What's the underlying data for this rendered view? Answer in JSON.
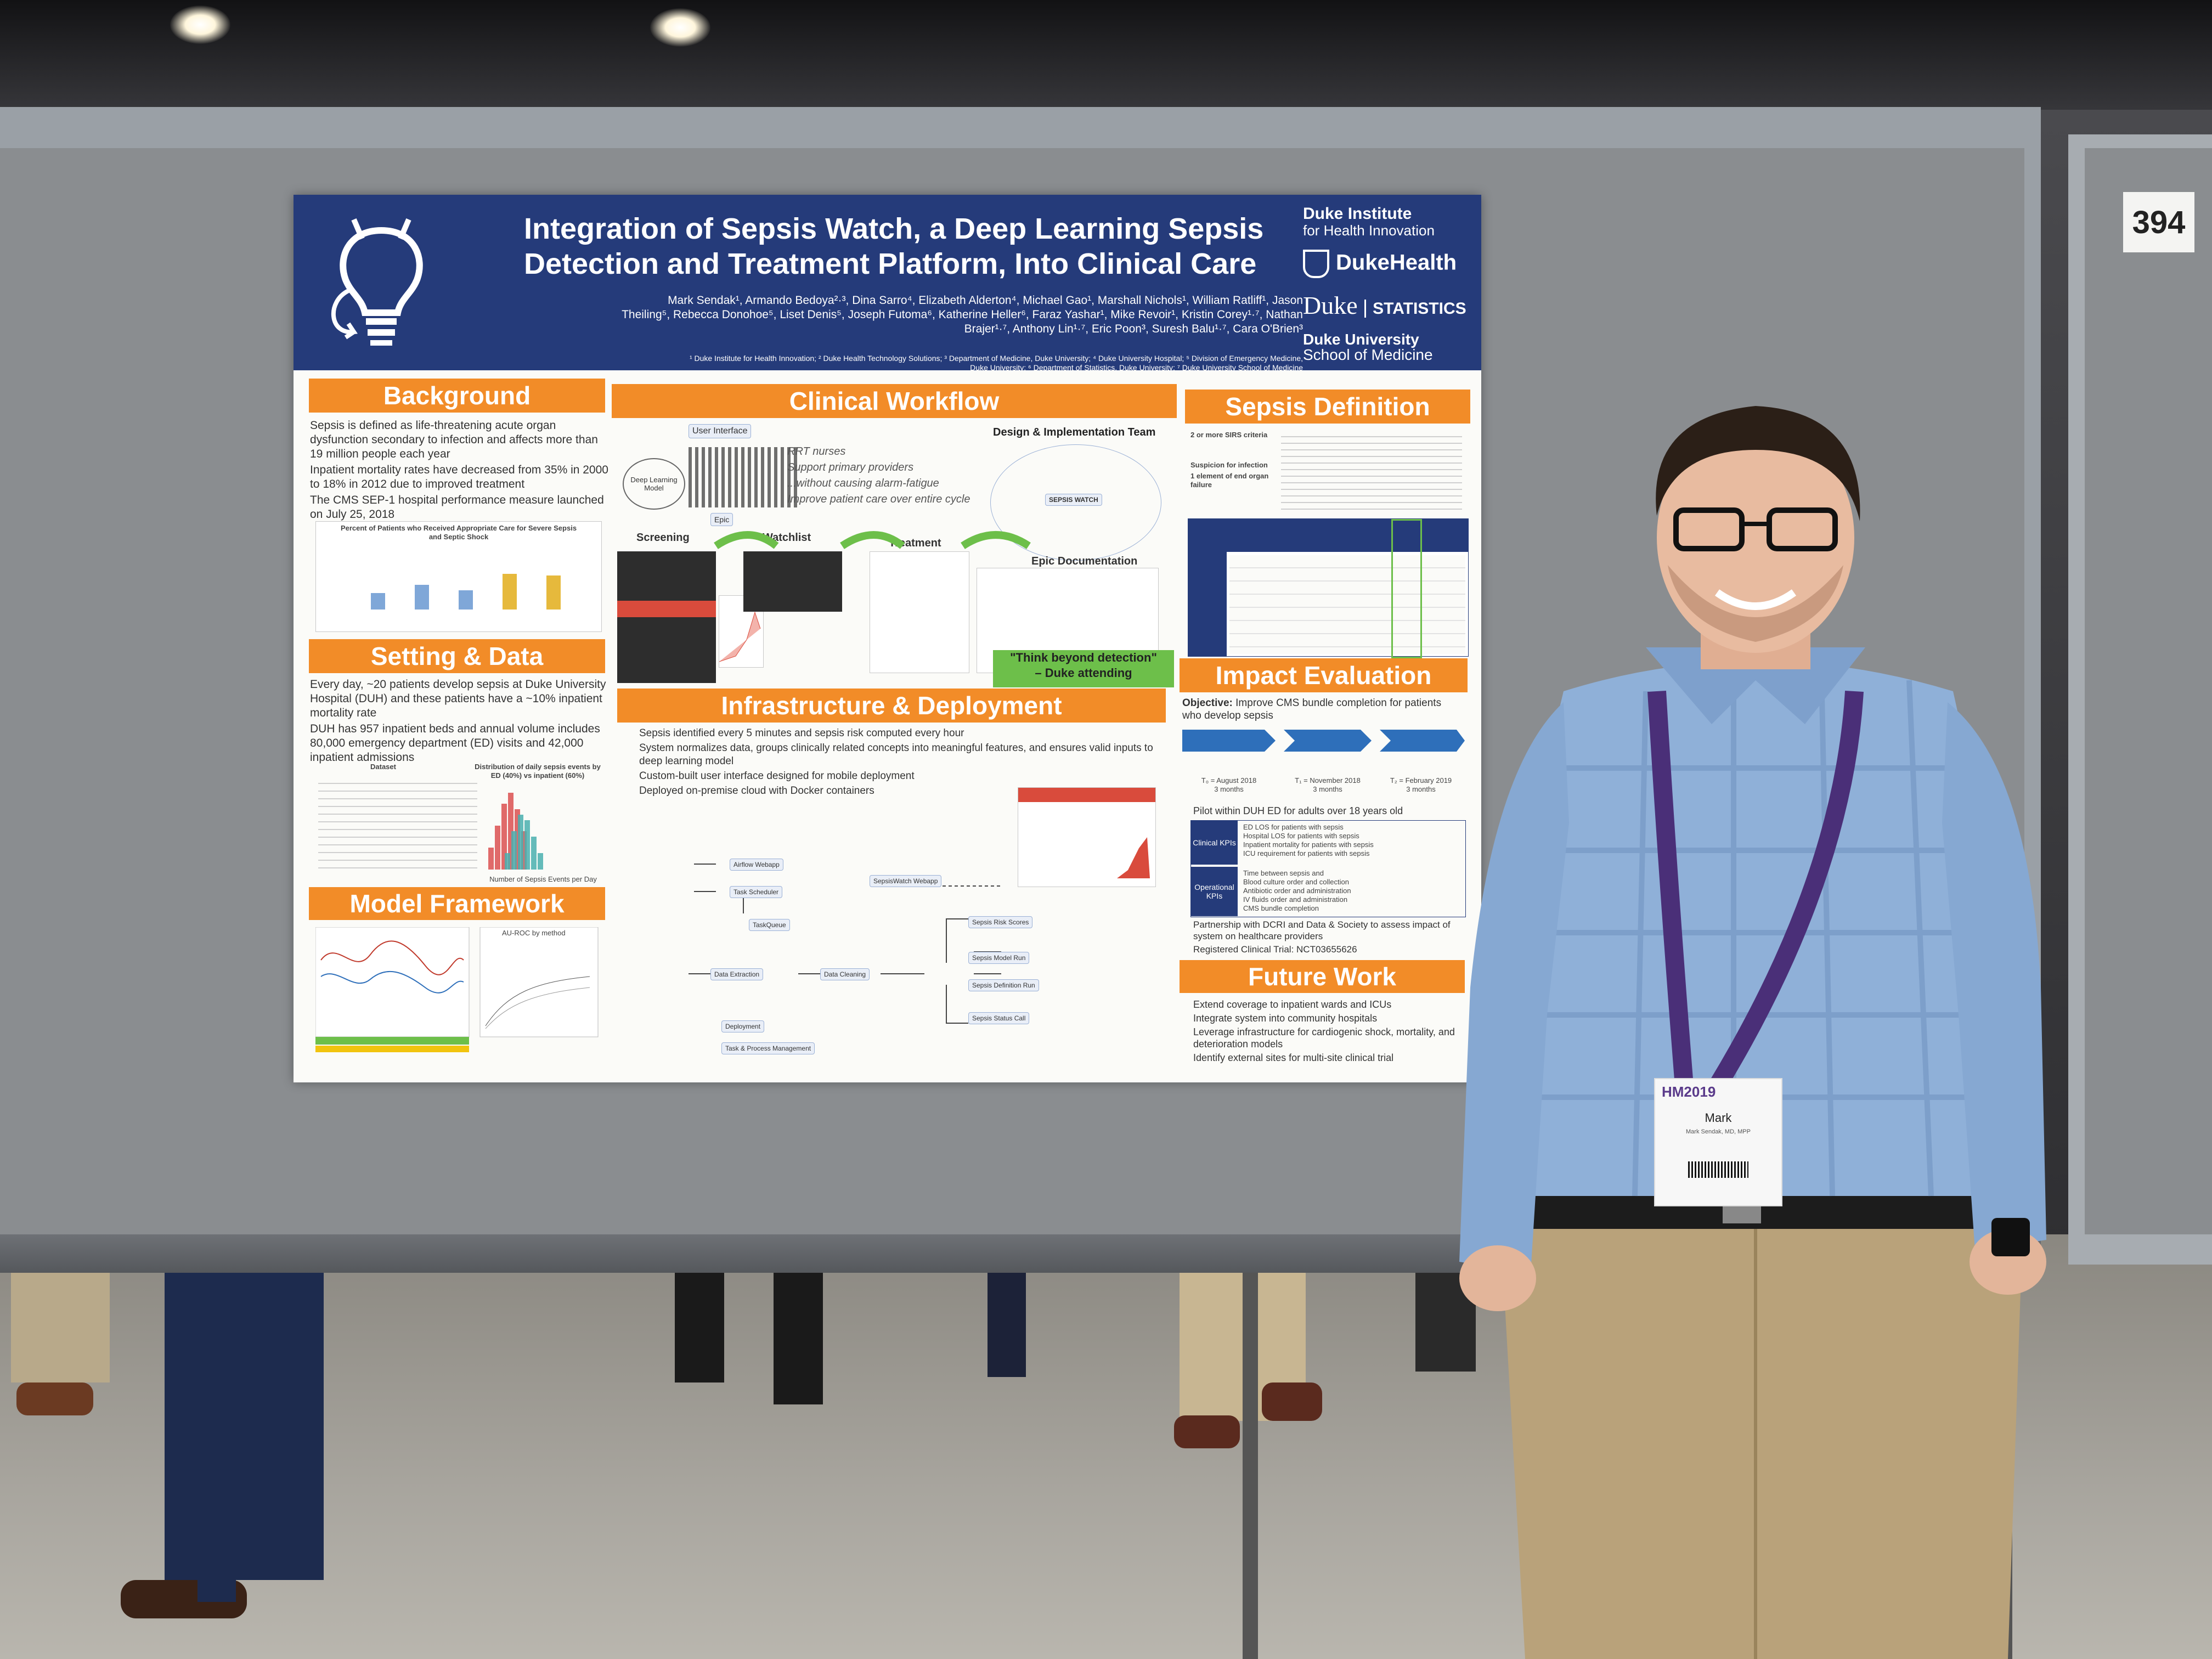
{
  "scene": {
    "board_number": "394",
    "description_colors": {
      "board": "#8a8d90",
      "poster_header": "#253b7a",
      "section_orange": "#f28c28"
    }
  },
  "poster": {
    "title_line1": "Integration of Sepsis Watch, a Deep Learning Sepsis",
    "title_line2": "Detection and Treatment Platform, Into Clinical Care",
    "authors_line1": "Mark Sendak¹, Armando Bedoya²·³, Dina Sarro⁴, Elizabeth Alderton⁴, Michael Gao¹, Marshall Nichols¹, William Ratliff¹, Jason",
    "authors_line2": "Theiling⁵, Rebecca Donohoe⁵, Liset Denis⁵, Joseph Futoma⁶, Katherine Heller⁶, Faraz Yashar¹, Mike Revoir¹, Kristin Corey¹·⁷, Nathan",
    "authors_line3": "Brajer¹·⁷, Anthony Lin¹·⁷, Eric Poon³, Suresh Balu¹·⁷, Cara O'Brien³",
    "affiliations_line1": "¹ Duke Institute for Health Innovation; ² Duke Health Technology Solutions; ³ Department of Medicine, Duke University; ⁴ Duke University Hospital; ⁵ Division of Emergency Medicine,",
    "affiliations_line2": "Duke University; ⁶ Department of Statistics, Duke University; ⁷ Duke University School of Medicine",
    "logos": {
      "dihi": "Duke Institute",
      "dihi_sub": "for Health Innovation",
      "dukehealth": "DukeHealth",
      "stats_duke": "Duke",
      "stats": "STATISTICS",
      "som": "Duke University",
      "som_sub": "School of Medicine"
    },
    "background": {
      "heading": "Background",
      "bullets": [
        "Sepsis is defined as life-threatening acute organ dysfunction secondary to infection and affects more than 19 million people each year",
        "Inpatient mortality rates have decreased from 35% in 2000 to 18% in 2012 due to improved treatment",
        "The CMS SEP-1 hospital performance measure launched on July 25, 2018"
      ],
      "chart_title": "Percent of Patients who Received Appropriate Care for Severe Sepsis and Septic Shock"
    },
    "setting": {
      "heading": "Setting & Data",
      "bullets": [
        "Every day, ~20 patients develop sepsis at Duke University Hospital (DUH) and these patients have a ~10% inpatient mortality rate",
        "DUH has 957 inpatient beds and annual volume includes 80,000 emergency department (ED) visits and 42,000 inpatient admissions"
      ],
      "dataset_label": "Dataset",
      "hist_title": "Distribution of daily sepsis events by ED (40%) vs inpatient (60%)",
      "hist_xlabel": "Number of Sepsis Events per Day"
    },
    "model": {
      "heading": "Model Framework",
      "plot_title": "AU-ROC by method"
    },
    "workflow": {
      "heading": "Clinical Workflow",
      "design_team": "Design & Implementation Team",
      "user_interface": "User Interface",
      "dl_model": "Deep Learning Model",
      "epic": "Epic",
      "rrt": "RRT nurses",
      "support": "Support primary providers",
      "without": "...without causing alarm-fatigue",
      "improve": "Improve patient care over entire cycle",
      "sepsis_watch": "SEPSIS WATCH",
      "screening": "Screening",
      "watchlist": "Watchlist",
      "treatment": "Treatment",
      "epic_doc": "Epic Documentation",
      "quote": "\"Think beyond detection\"",
      "quote_attr": "– Duke attending"
    },
    "infra": {
      "heading": "Infrastructure & Deployment",
      "bullets": [
        "Sepsis identified every 5 minutes and sepsis risk computed every hour",
        "System normalizes data, groups clinically related concepts into meaningful features, and ensures valid inputs to deep learning model",
        "Custom-built user interface designed for mobile deployment",
        "Deployed on-premise cloud with Docker containers"
      ],
      "nodes": {
        "airflow": "Airflow Webapp",
        "scheduler": "Task Scheduler",
        "taskqueue": "TaskQueue",
        "extraction": "Data Extraction",
        "cleaning": "Data Cleaning",
        "sw_webapp": "SepsisWatch Webapp",
        "risk": "Sepsis Risk Scores",
        "model_run": "Sepsis Model Run",
        "definition_run": "Sepsis Definition Run",
        "status": "Sepsis Status Call",
        "deployment": "Deployment",
        "task_mgmt": "Task & Process Management"
      }
    },
    "definition": {
      "heading": "Sepsis Definition",
      "sirs": "2 or more SIRS criteria",
      "suspicion": "Suspicion for infection",
      "organ": "1 element of end organ failure"
    },
    "impact": {
      "heading": "Impact Evaluation",
      "objective_label": "Objective:",
      "objective": "Improve CMS bundle completion for patients who develop sepsis",
      "t0": "T₀ = August 2018",
      "t1": "T₁ = November 2018",
      "t2": "T₂ = February 2019",
      "months": "3 months",
      "pilot": "Pilot within DUH ED for adults over 18 years old",
      "clinical_kpis": "Clinical KPIs",
      "clinical_list": [
        "ED LOS for patients with sepsis",
        "Hospital LOS for patients with sepsis",
        "Inpatient mortality for patients with sepsis",
        "ICU requirement for patients with sepsis"
      ],
      "operational_kpis": "Operational KPIs",
      "operational_list": [
        "Time between sepsis and",
        "Blood culture order and collection",
        "Antibiotic order and administration",
        "IV fluids order and administration",
        "CMS bundle completion"
      ],
      "bullets": [
        "Partnership with DCRI and Data & Society to assess impact of system on healthcare providers",
        "Registered Clinical Trial: NCT03655626"
      ]
    },
    "future": {
      "heading": "Future Work",
      "bullets": [
        "Extend coverage to inpatient wards and ICUs",
        "Integrate system into community hospitals",
        "Leverage infrastructure for cardiogenic shock, mortality, and deterioration models",
        "Identify external sites for multi-site clinical trial"
      ]
    }
  },
  "badge": {
    "logo": "HM2019",
    "name": "Mark",
    "line": "Mark Sendak, MD, MPP"
  }
}
